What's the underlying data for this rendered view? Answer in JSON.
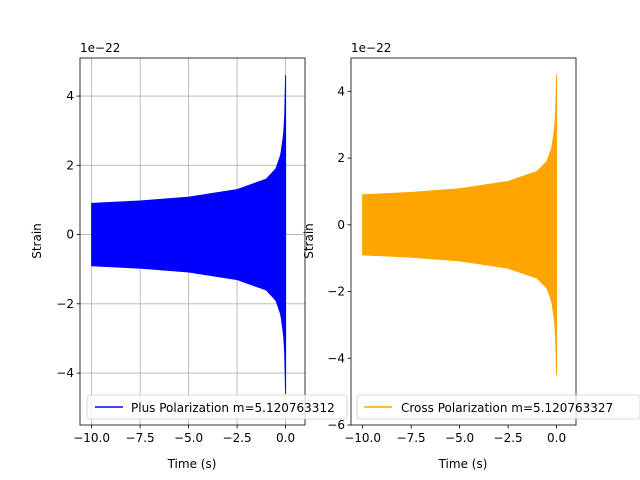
{
  "chart_data": [
    {
      "type": "line",
      "panel": "left",
      "grid": true,
      "offset_text": "1e−22",
      "xlabel": "Time (s)",
      "ylabel": "Strain",
      "xlim": [
        -10.6,
        1.0
      ],
      "ylim": [
        -5.5,
        5.1
      ],
      "xticks": [
        -10.0,
        -7.5,
        -5.0,
        -2.5,
        0.0
      ],
      "xtick_labels": [
        "−10.0",
        "−7.5",
        "−5.0",
        "−2.5",
        "0.0"
      ],
      "yticks": [
        -4,
        -2,
        0,
        2,
        4
      ],
      "ytick_labels": [
        "−4",
        "−2",
        "0",
        "2",
        "4"
      ],
      "series": [
        {
          "name": "Plus Polarization m=5.120763312",
          "color": "#0000ff",
          "x": [
            -10.0,
            -7.5,
            -5.0,
            -2.5,
            -1.0,
            -0.5,
            -0.25,
            -0.1,
            -0.03,
            0.0
          ],
          "envelope": [
            0.9,
            0.97,
            1.08,
            1.3,
            1.6,
            1.9,
            2.3,
            2.9,
            3.6,
            4.6
          ]
        }
      ],
      "legend": "lower-left"
    },
    {
      "type": "line",
      "panel": "right",
      "grid": false,
      "offset_text": "1e−22",
      "xlabel": "Time (s)",
      "ylabel": "Strain",
      "xlim": [
        -10.6,
        1.0
      ],
      "ylim": [
        -6.0,
        5.0
      ],
      "xticks": [
        -10.0,
        -7.5,
        -5.0,
        -2.5,
        0.0
      ],
      "xtick_labels": [
        "−10.0",
        "−7.5",
        "−5.0",
        "−2.5",
        "0.0"
      ],
      "yticks": [
        -6,
        -4,
        -2,
        0,
        2,
        4
      ],
      "ytick_labels": [
        "−6",
        "−4",
        "−2",
        "0",
        "2",
        "4"
      ],
      "series": [
        {
          "name": "Cross Polarization m=5.120763327",
          "color": "#ffa500",
          "x": [
            -10.0,
            -7.5,
            -5.0,
            -2.5,
            -1.0,
            -0.5,
            -0.25,
            -0.1,
            -0.03,
            0.0
          ],
          "envelope": [
            0.9,
            0.97,
            1.08,
            1.3,
            1.6,
            1.9,
            2.3,
            2.9,
            3.6,
            4.5
          ]
        }
      ],
      "legend": "lower-left"
    }
  ]
}
